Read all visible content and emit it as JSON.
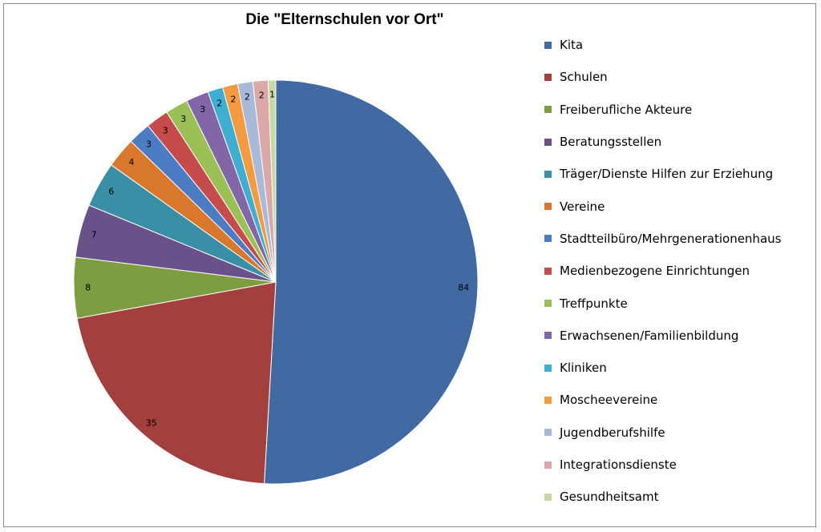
{
  "chart_data": {
    "type": "pie",
    "title": "Die \"Elternschulen vor Ort\"",
    "legend_position": "right",
    "slices": [
      {
        "label": "Kita",
        "value": 84,
        "color": "#4169A2"
      },
      {
        "label": "Schulen",
        "value": 35,
        "color": "#A33F3C"
      },
      {
        "label": "Freiberufliche Akteure",
        "value": 8,
        "color": "#7E9C40"
      },
      {
        "label": "Beratungsstellen",
        "value": 7,
        "color": "#69518A"
      },
      {
        "label": "Träger/Dienste Hilfen zur Erziehung",
        "value": 6,
        "color": "#3A8FA6"
      },
      {
        "label": "Vereine",
        "value": 4,
        "color": "#D9782D"
      },
      {
        "label": "Stadtteilbüro/Mehrgenerationenhaus",
        "value": 3,
        "color": "#4C7CC4"
      },
      {
        "label": "Medienbezogene Einrichtungen",
        "value": 3,
        "color": "#C64B4B"
      },
      {
        "label": "Treffpunkte",
        "value": 3,
        "color": "#9BC055"
      },
      {
        "label": "Erwachsenen/Familienbildung",
        "value": 3,
        "color": "#8366A8"
      },
      {
        "label": "Kliniken",
        "value": 2,
        "color": "#3FAED0"
      },
      {
        "label": "Moscheevereine",
        "value": 2,
        "color": "#F59A3E"
      },
      {
        "label": "Jugendberufshilfe",
        "value": 2,
        "color": "#A9B9DA"
      },
      {
        "label": "Integrationsdienste",
        "value": 2,
        "color": "#DBA8A7"
      },
      {
        "label": "Gesundheitsamt",
        "value": 1,
        "color": "#C5D9A6"
      }
    ]
  }
}
